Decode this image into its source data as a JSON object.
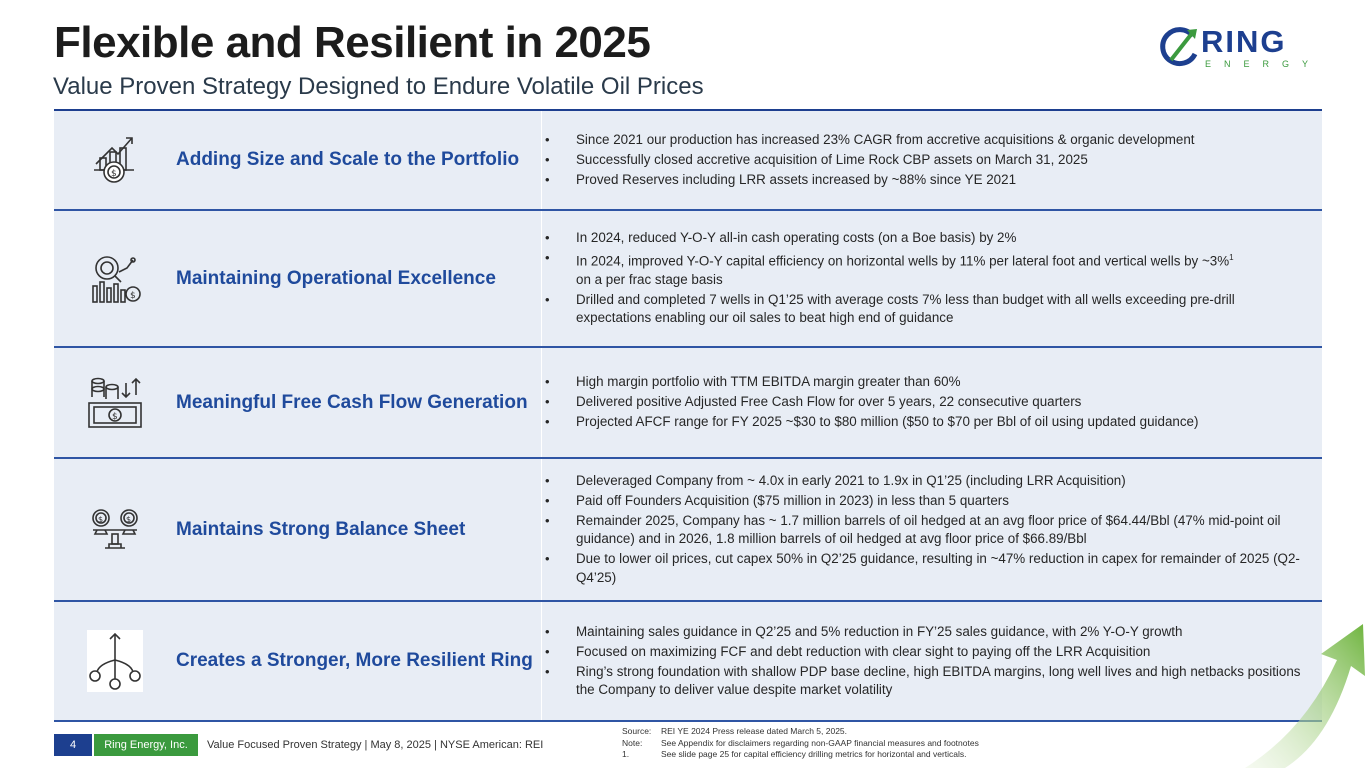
{
  "header": {
    "title": "Flexible and Resilient in 2025",
    "subtitle": "Value Proven Strategy Designed to Endure Volatile Oil Prices"
  },
  "logo": {
    "word": "RING",
    "sub": "ENERGY"
  },
  "rows": [
    {
      "heading": "Adding Size and Scale to the Portfolio",
      "icon": "growth-dollar-icon",
      "bullets": [
        "Since 2021 our production has increased 23% CAGR from accretive acquisitions & organic development",
        "Successfully closed accretive acquisition of Lime Rock CBP assets on March 31, 2025",
        "Proved Reserves including LRR assets increased by ~88% since YE 2021"
      ]
    },
    {
      "heading": "Maintaining Operational Excellence",
      "icon": "analytics-magnifier-icon",
      "bullets": [
        "In 2024, reduced Y-O-Y all-in cash operating costs (on a Boe basis) by 2%",
        "In 2024, improved  Y-O-Y capital efficiency on horizontal wells by 11% per lateral foot and vertical wells by ~3%",
        "Drilled and completed 7 wells in Q1’25 with average costs 7% less than budget with all wells exceeding pre-drill expectations enabling our oil sales to beat high end of guidance"
      ],
      "bullet2_sup": "1",
      "bullet2_cont": "on a per frac stage basis"
    },
    {
      "heading": "Meaningful Free Cash Flow Generation",
      "icon": "cash-flow-icon",
      "bullets": [
        "High margin portfolio with TTM EBITDA margin greater than 60%",
        "Delivered positive Adjusted Free Cash Flow for over 5 years, 22 consecutive quarters",
        "Projected AFCF range for FY 2025 ~$30 to $80 million ($50 to $70 per Bbl of oil using updated guidance)"
      ]
    },
    {
      "heading": "Maintains Strong Balance Sheet",
      "icon": "balance-scale-icon",
      "bullets": [
        "Deleveraged Company from ~ 4.0x in early 2021 to 1.9x in Q1’25 (including LRR Acquisition)",
        "Paid off Founders Acquisition ($75 million in 2023) in less than 5 quarters",
        "Remainder 2025, Company has ~ 1.7 million barrels of oil hedged at an avg floor price of $64.44/Bbl (47% mid-point oil guidance) and in 2026, 1.8 million barrels of oil hedged at avg floor price of $66.89/Bbl",
        "Due to lower oil prices, cut capex 50% in Q2’25 guidance, resulting in ~47% reduction in capex for remainder of 2025 (Q2-Q4’25)"
      ]
    },
    {
      "heading": "Creates a Stronger, More Resilient Ring",
      "icon": "merge-network-icon",
      "bullets": [
        "Maintaining sales guidance in Q2’25 and 5% reduction in FY’25 sales guidance, with 2% Y-O-Y growth",
        "Focused on maximizing FCF and debt reduction with clear sight to paying off the LRR Acquisition",
        "Ring’s strong foundation with shallow PDP base decline, high EBITDA margins, long well lives and high netbacks positions the Company to deliver value despite market volatility"
      ]
    }
  ],
  "footer": {
    "page": "4",
    "company": "Ring Energy, Inc.",
    "text": "Value Focused Proven Strategy  | May 8, 2025 |  NYSE American: REI"
  },
  "footnotes": [
    {
      "label": "Source:",
      "text": "REI YE 2024 Press release dated March 5, 2025."
    },
    {
      "label": "Note:",
      "text": "See Appendix for disclaimers regarding non-GAAP financial measures and footnotes"
    },
    {
      "label": "1.",
      "text": "See slide page 25 for capital efficiency drilling metrics for horizontal and verticals."
    }
  ],
  "colors": {
    "navy": "#1d3f8f",
    "green": "#3b9a3e",
    "row_bg": "#e8edf5"
  }
}
